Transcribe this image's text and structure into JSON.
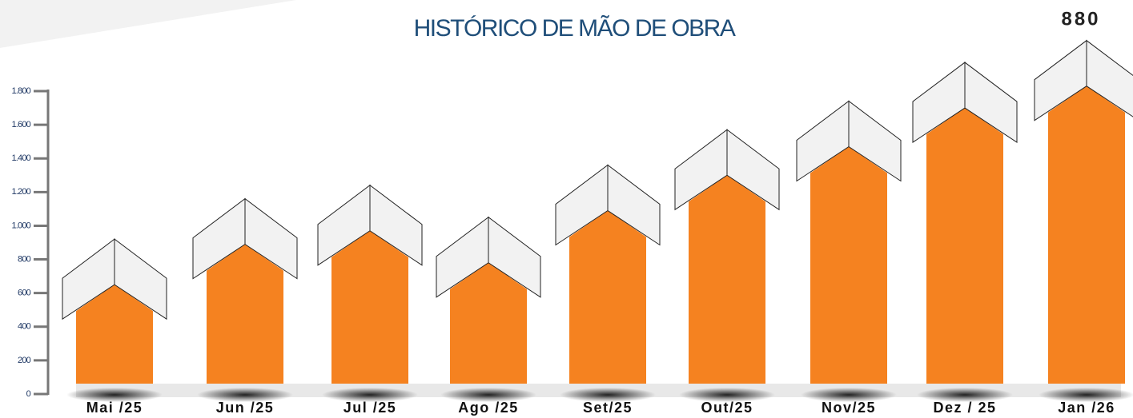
{
  "chart_data": {
    "type": "bar",
    "title": "HISTÓRICO DE MÃO DE OBRA",
    "annotation": "880",
    "categories": [
      "Mai /25",
      "Jun /25",
      "Jul /25",
      "Ago /25",
      "Set/25",
      "Out/25",
      "Nov/25",
      "Dez / 25",
      "Jan /26"
    ],
    "values": [
      650,
      890,
      970,
      780,
      1090,
      1300,
      1470,
      1700,
      1830
    ],
    "color": "#f58220",
    "ylim": [
      0,
      1800
    ],
    "yticks": [
      0,
      200,
      400,
      600,
      800,
      {
        "value": 1000,
        "label": "1.000"
      },
      {
        "value": 1200,
        "label": "1.200"
      },
      {
        "value": 1400,
        "label": "1.400"
      },
      {
        "value": 1600,
        "label": "1.600"
      },
      {
        "value": 1800,
        "label": "1.800"
      }
    ]
  }
}
